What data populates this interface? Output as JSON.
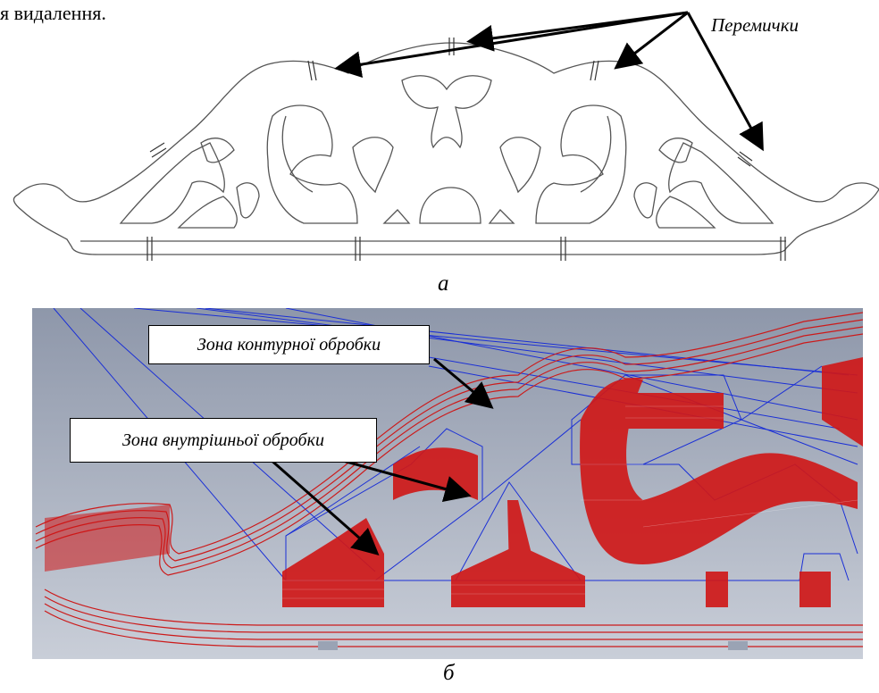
{
  "top_fragment": "я видалення.",
  "labels": {
    "jumpers": "Перемички",
    "contour_zone": "Зона контурної обробки",
    "inner_zone": "Зона внутрішньої обробки"
  },
  "captions": {
    "a": "a",
    "b": "б"
  },
  "colors": {
    "outline": "#555555",
    "toolpath_red": "#cc1a1a",
    "toolpath_blue": "#1a2fd6",
    "render_bg_top": "#9aa2b4",
    "render_bg_bottom": "#c9ced8"
  }
}
